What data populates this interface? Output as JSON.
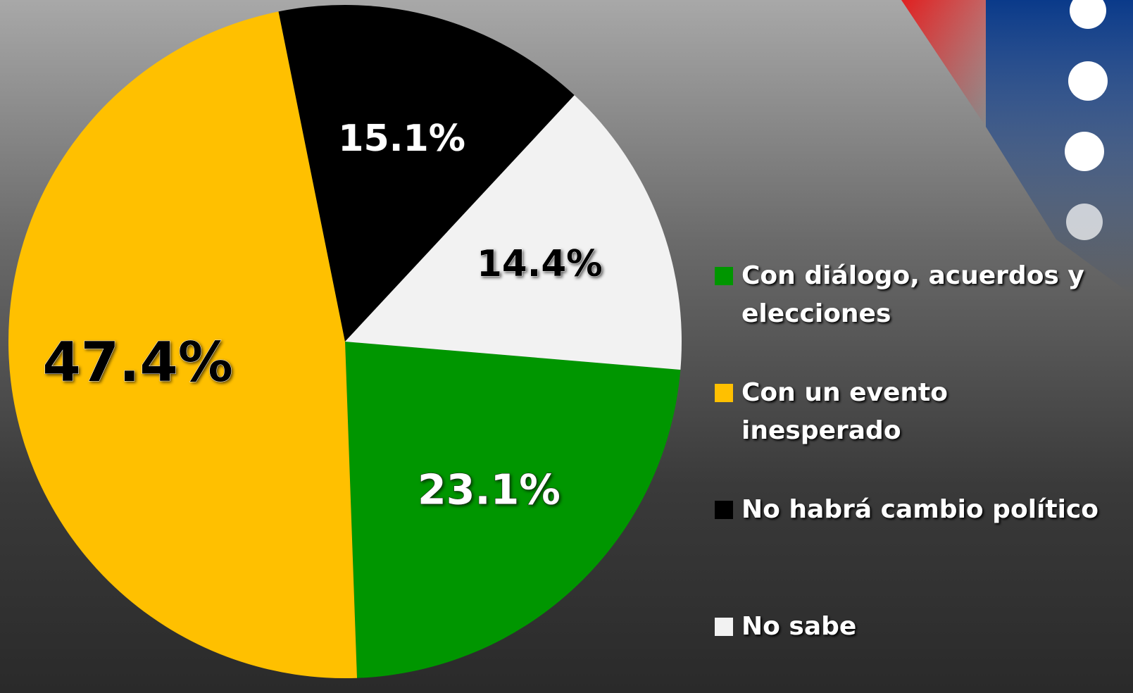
{
  "chart_data": {
    "type": "pie",
    "categories": [
      "Con diálogo, acuerdos y elecciones",
      "Con un evento inesperado",
      "No habrá cambio político",
      "No sabe"
    ],
    "values": [
      23.1,
      47.4,
      15.1,
      14.4
    ],
    "value_labels": [
      "23.1%",
      "47.4%",
      "15.1%",
      "14.4%"
    ],
    "colors": [
      "#009600",
      "#ffc000",
      "#000000",
      "#f2f2f2"
    ],
    "legend": "right"
  }
}
